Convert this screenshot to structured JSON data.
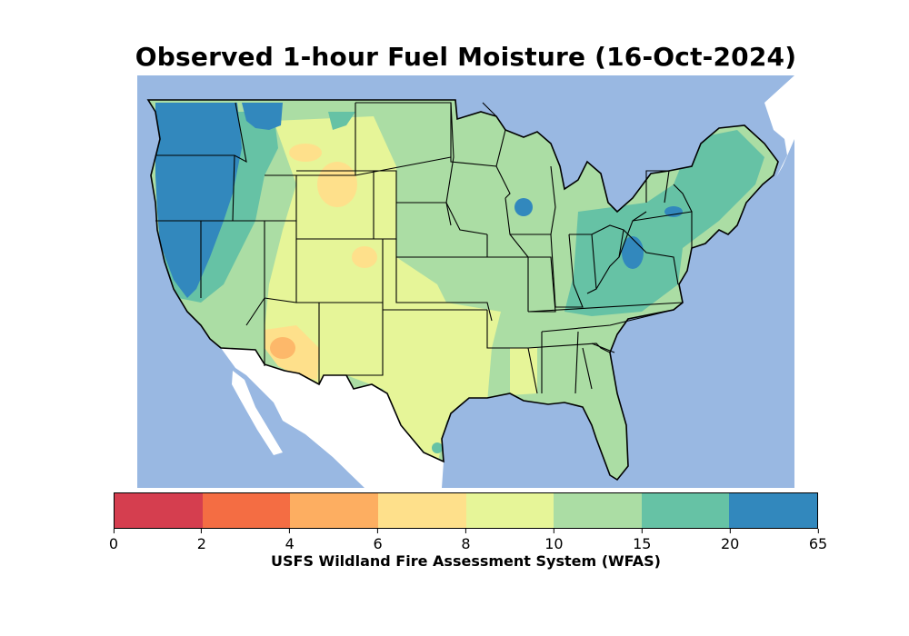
{
  "title": "Observed 1-hour Fuel Moisture (16-Oct-2024)",
  "colorbar": {
    "label": "USFS Wildland Fire Assessment System (WFAS)",
    "ticks": [
      "0",
      "2",
      "4",
      "6",
      "8",
      "10",
      "15",
      "20",
      "65"
    ],
    "colors": [
      "#d53e4f",
      "#f46d43",
      "#fdae61",
      "#fee08b",
      "#e6f598",
      "#abdda4",
      "#66c2a5",
      "#3288bd"
    ]
  },
  "map": {
    "ocean_color": "#99b8e2",
    "land_outside_color": "#ffffff",
    "border_color": "#000000"
  }
}
